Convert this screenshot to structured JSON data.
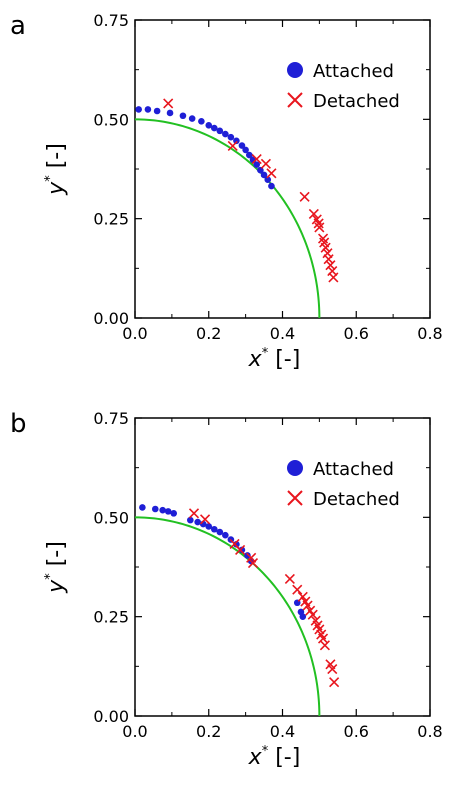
{
  "chart_data": [
    {
      "type": "scatter",
      "panel_label": "a",
      "xlabel": "x* [-]",
      "xlabel_base": "x",
      "ylabel": "y* [-]",
      "ylabel_base": "y",
      "label_superscript": "*",
      "label_unit": "[-]",
      "xlim": [
        0,
        0.8
      ],
      "ylim": [
        0,
        0.75
      ],
      "x_ticks": [
        "0.0",
        "0.2",
        "0.4",
        "0.6",
        "0.8"
      ],
      "x_tick_values": [
        0,
        0.2,
        0.4,
        0.6,
        0.8
      ],
      "y_ticks": [
        "0.00",
        "0.25",
        "0.50",
        "0.75"
      ],
      "y_tick_values": [
        0,
        0.25,
        0.5,
        0.75
      ],
      "grid": false,
      "legend_position": "top-right",
      "reference_curve": {
        "shape": "quarter-circle",
        "radius": 0.5,
        "color": "#22c022"
      },
      "series": [
        {
          "name": "Attached",
          "marker": "circle",
          "color": "#1f1fd6",
          "points": [
            [
              0.01,
              0.525
            ],
            [
              0.035,
              0.525
            ],
            [
              0.06,
              0.521
            ],
            [
              0.095,
              0.516
            ],
            [
              0.13,
              0.509
            ],
            [
              0.155,
              0.502
            ],
            [
              0.18,
              0.495
            ],
            [
              0.2,
              0.485
            ],
            [
              0.215,
              0.478
            ],
            [
              0.23,
              0.471
            ],
            [
              0.245,
              0.463
            ],
            [
              0.26,
              0.455
            ],
            [
              0.275,
              0.446
            ],
            [
              0.29,
              0.434
            ],
            [
              0.3,
              0.423
            ],
            [
              0.31,
              0.41
            ],
            [
              0.32,
              0.398
            ],
            [
              0.33,
              0.386
            ],
            [
              0.34,
              0.372
            ],
            [
              0.35,
              0.36
            ],
            [
              0.36,
              0.348
            ],
            [
              0.37,
              0.332
            ]
          ]
        },
        {
          "name": "Detached",
          "marker": "cross",
          "color": "#e8161e",
          "points": [
            [
              0.09,
              0.54
            ],
            [
              0.265,
              0.433
            ],
            [
              0.33,
              0.4
            ],
            [
              0.355,
              0.388
            ],
            [
              0.37,
              0.364
            ],
            [
              0.46,
              0.305
            ],
            [
              0.485,
              0.262
            ],
            [
              0.493,
              0.248
            ],
            [
              0.498,
              0.238
            ],
            [
              0.5,
              0.228
            ],
            [
              0.51,
              0.2
            ],
            [
              0.513,
              0.19
            ],
            [
              0.517,
              0.177
            ],
            [
              0.522,
              0.163
            ],
            [
              0.525,
              0.148
            ],
            [
              0.53,
              0.133
            ],
            [
              0.535,
              0.118
            ],
            [
              0.538,
              0.102
            ]
          ]
        }
      ]
    },
    {
      "type": "scatter",
      "panel_label": "b",
      "xlabel": "x* [-]",
      "xlabel_base": "x",
      "ylabel": "y* [-]",
      "ylabel_base": "y",
      "label_superscript": "*",
      "label_unit": "[-]",
      "xlim": [
        0,
        0.8
      ],
      "ylim": [
        0,
        0.75
      ],
      "x_ticks": [
        "0.0",
        "0.2",
        "0.4",
        "0.6",
        "0.8"
      ],
      "x_tick_values": [
        0,
        0.2,
        0.4,
        0.6,
        0.8
      ],
      "y_ticks": [
        "0.00",
        "0.25",
        "0.50",
        "0.75"
      ],
      "y_tick_values": [
        0,
        0.25,
        0.5,
        0.75
      ],
      "grid": false,
      "legend_position": "top-right",
      "reference_curve": {
        "shape": "quarter-circle",
        "radius": 0.5,
        "color": "#22c022"
      },
      "series": [
        {
          "name": "Attached",
          "marker": "circle",
          "color": "#1f1fd6",
          "points": [
            [
              0.02,
              0.525
            ],
            [
              0.055,
              0.521
            ],
            [
              0.075,
              0.518
            ],
            [
              0.09,
              0.515
            ],
            [
              0.105,
              0.51
            ],
            [
              0.15,
              0.493
            ],
            [
              0.17,
              0.488
            ],
            [
              0.185,
              0.483
            ],
            [
              0.2,
              0.477
            ],
            [
              0.215,
              0.47
            ],
            [
              0.23,
              0.463
            ],
            [
              0.245,
              0.455
            ],
            [
              0.26,
              0.444
            ],
            [
              0.275,
              0.432
            ],
            [
              0.29,
              0.418
            ],
            [
              0.305,
              0.404
            ],
            [
              0.315,
              0.39
            ],
            [
              0.44,
              0.285
            ],
            [
              0.45,
              0.262
            ],
            [
              0.455,
              0.25
            ]
          ]
        },
        {
          "name": "Detached",
          "marker": "cross",
          "color": "#e8161e",
          "points": [
            [
              0.16,
              0.51
            ],
            [
              0.19,
              0.495
            ],
            [
              0.27,
              0.433
            ],
            [
              0.285,
              0.418
            ],
            [
              0.315,
              0.398
            ],
            [
              0.32,
              0.385
            ],
            [
              0.42,
              0.345
            ],
            [
              0.44,
              0.318
            ],
            [
              0.455,
              0.3
            ],
            [
              0.462,
              0.288
            ],
            [
              0.468,
              0.278
            ],
            [
              0.475,
              0.265
            ],
            [
              0.482,
              0.255
            ],
            [
              0.49,
              0.24
            ],
            [
              0.495,
              0.228
            ],
            [
              0.5,
              0.218
            ],
            [
              0.505,
              0.205
            ],
            [
              0.51,
              0.195
            ],
            [
              0.515,
              0.178
            ],
            [
              0.53,
              0.13
            ],
            [
              0.535,
              0.118
            ],
            [
              0.54,
              0.085
            ]
          ]
        }
      ]
    }
  ]
}
